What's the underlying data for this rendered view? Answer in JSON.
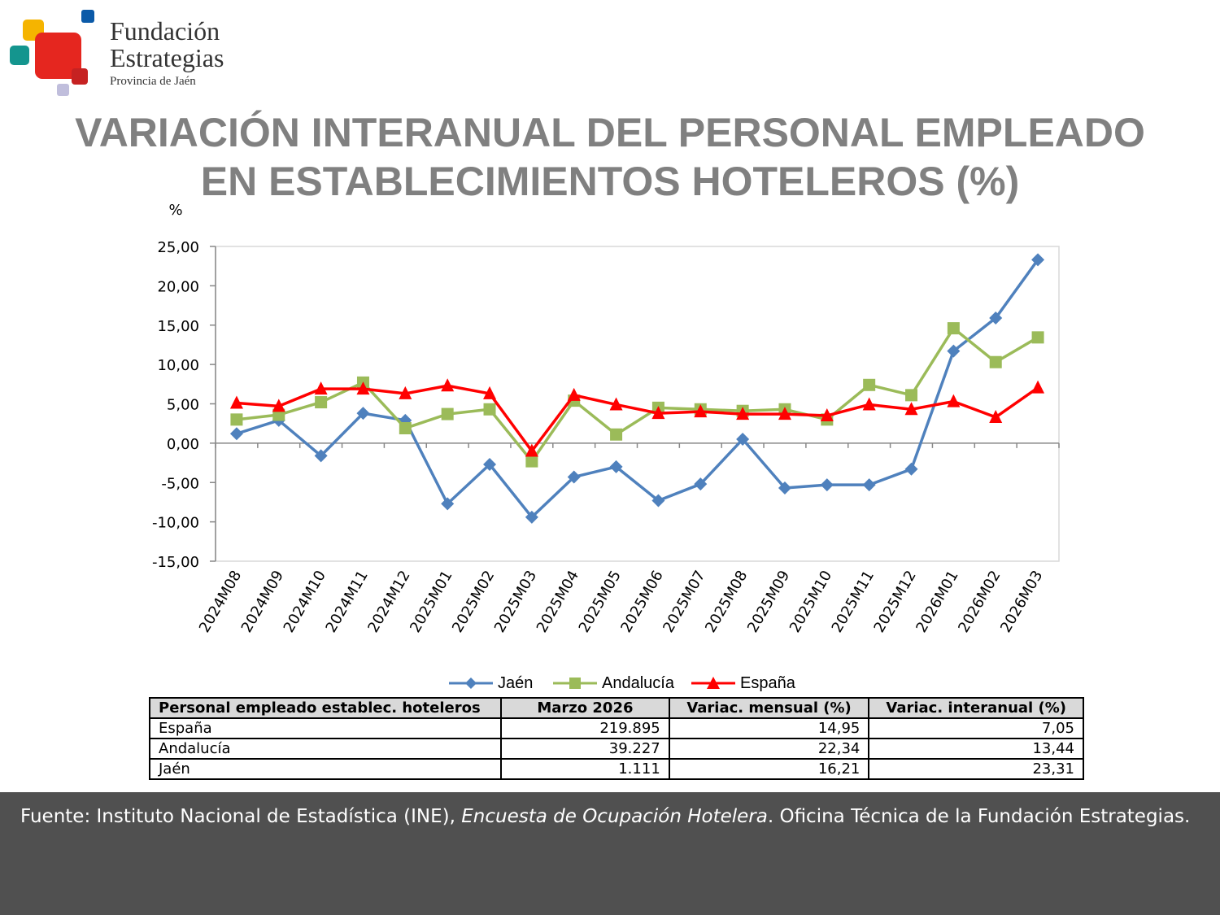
{
  "logo": {
    "name_line1": "Fundación",
    "name_line2": "Estrategias",
    "subtitle": "Provincia de Jaén"
  },
  "title": {
    "line1": "VARIACIÓN INTERANUAL DEL PERSONAL EMPLEADO",
    "line2": "EN ESTABLECIMIENTOS HOTELEROS (%)"
  },
  "chart_data": {
    "type": "line",
    "ylabel": "%",
    "ylim": [
      -15,
      25
    ],
    "yticks": [
      "25,00",
      "20,00",
      "15,00",
      "10,00",
      "5,00",
      "0,00",
      "-5,00",
      "-10,00",
      "-15,00"
    ],
    "categories": [
      "2024M08",
      "2024M09",
      "2024M10",
      "2024M11",
      "2024M12",
      "2025M01",
      "2025M02",
      "2025M03",
      "2025M04",
      "2025M05",
      "2025M06",
      "2025M07",
      "2025M08",
      "2025M09",
      "2025M10",
      "2025M11",
      "2025M12",
      "2026M01",
      "2026M02",
      "2026M03"
    ],
    "series": [
      {
        "name": "Jaén",
        "color": "#4f81bd",
        "marker": "diamond",
        "values": [
          1.2,
          2.9,
          -1.6,
          3.8,
          2.9,
          -7.7,
          -2.7,
          -9.4,
          -4.3,
          -3.0,
          -7.3,
          -5.2,
          0.5,
          -5.7,
          -5.3,
          -5.3,
          -3.3,
          11.7,
          15.9,
          23.31
        ]
      },
      {
        "name": "Andalucía",
        "color": "#9bbb59",
        "marker": "square",
        "values": [
          3.0,
          3.6,
          5.2,
          7.7,
          1.9,
          3.7,
          4.3,
          -2.3,
          5.4,
          1.1,
          4.5,
          4.3,
          4.1,
          4.3,
          3.0,
          7.4,
          6.1,
          14.6,
          10.3,
          13.44
        ]
      },
      {
        "name": "España",
        "color": "#ff0000",
        "marker": "triangle",
        "values": [
          5.1,
          4.7,
          6.9,
          6.9,
          6.3,
          7.3,
          6.3,
          -1.0,
          6.1,
          4.9,
          3.8,
          4.0,
          3.7,
          3.7,
          3.5,
          4.9,
          4.3,
          5.3,
          3.3,
          7.05
        ]
      }
    ]
  },
  "table": {
    "headers": [
      "Personal empleado establec. hoteleros",
      "Marzo 2026",
      "Variac. mensual (%)",
      "Variac. interanual (%)"
    ],
    "rows": [
      [
        "España",
        "219.895",
        "14,95",
        "7,05"
      ],
      [
        "Andalucía",
        "39.227",
        "22,34",
        "13,44"
      ],
      [
        "Jaén",
        "1.111",
        "16,21",
        "23,31"
      ]
    ]
  },
  "footer": {
    "lead": "Fuente: Instituto Nacional de Estadística (INE), ",
    "italic": "Encuesta de Ocupación Hotelera",
    "tail": ". Oficina Técnica de la Fundación Estrategias."
  }
}
